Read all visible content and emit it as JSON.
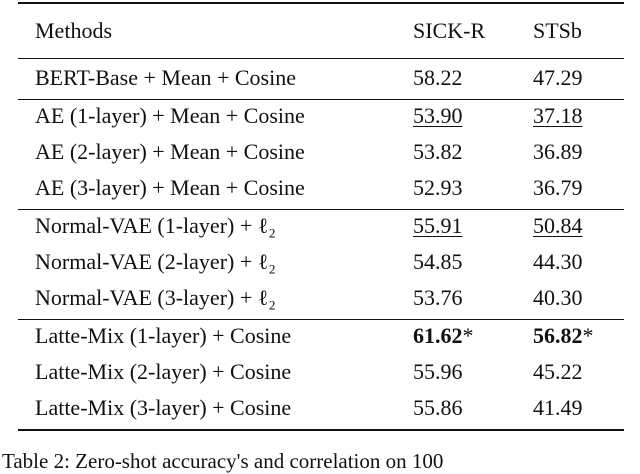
{
  "table": {
    "header": [
      "Methods",
      "SICK-R",
      "STSb"
    ],
    "groups": [
      [
        [
          "BERT-Base + Mean + Cosine",
          {
            "text": "58.22"
          },
          {
            "text": "47.29"
          }
        ]
      ],
      [
        [
          "AE (1-layer) + Mean + Cosine",
          {
            "text": "53.90",
            "style": "underline"
          },
          {
            "text": "37.18",
            "style": "underline"
          }
        ],
        [
          "AE (2-layer) + Mean + Cosine",
          {
            "text": "53.82"
          },
          {
            "text": "36.89"
          }
        ],
        [
          "AE (3-layer) + Mean + Cosine",
          {
            "text": "52.93"
          },
          {
            "text": "36.79"
          }
        ]
      ],
      [
        [
          "Normal-VAE (1-layer) + ℓ₂",
          {
            "text": "55.91",
            "style": "underline"
          },
          {
            "text": "50.84",
            "style": "underline"
          }
        ],
        [
          "Normal-VAE (2-layer) + ℓ₂",
          {
            "text": "54.85"
          },
          {
            "text": "44.30"
          }
        ],
        [
          "Normal-VAE (3-layer) + ℓ₂",
          {
            "text": "53.76"
          },
          {
            "text": "40.30"
          }
        ]
      ],
      [
        [
          "Latte-Mix (1-layer) + Cosine",
          {
            "text": "61.62",
            "mark": "*",
            "style": "bold"
          },
          {
            "text": "56.82",
            "mark": "*",
            "style": "bold"
          }
        ],
        [
          "Latte-Mix (2-layer) + Cosine",
          {
            "text": "55.96"
          },
          {
            "text": "45.22"
          }
        ],
        [
          "Latte-Mix (3-layer) + Cosine",
          {
            "text": "55.86"
          },
          {
            "text": "41.49"
          }
        ]
      ]
    ]
  },
  "caption": "Table 2: Zero-shot accuracy's and correlation on 100"
}
